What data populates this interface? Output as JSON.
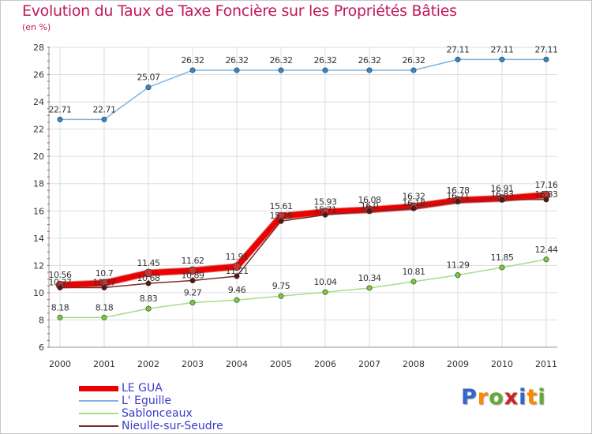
{
  "chart_data": {
    "type": "line",
    "title": "Evolution du Taux de Taxe Foncière sur les Propriétés Bâties",
    "ylabel": "(en %)",
    "xlabel": "",
    "categories": [
      "2000",
      "2001",
      "2002",
      "2003",
      "2004",
      "2005",
      "2006",
      "2007",
      "2008",
      "2009",
      "2010",
      "2011"
    ],
    "ylim": [
      6,
      28
    ],
    "yticks": [
      6,
      8,
      10,
      12,
      14,
      16,
      18,
      20,
      22,
      24,
      26,
      28
    ],
    "grid": true,
    "legend_position": "bottom-left",
    "series": [
      {
        "name": "LE GUA",
        "color": "#ee0000",
        "marker_color": "#cc3333",
        "values": [
          10.56,
          10.7,
          11.45,
          11.62,
          11.91,
          15.61,
          15.93,
          16.08,
          16.32,
          16.78,
          16.91,
          17.16
        ],
        "labels": [
          "10.56",
          "10.7",
          "11.45",
          "11.62",
          "11.91",
          "15.61",
          "15.93",
          "16.08",
          "16.32",
          "16.78",
          "16.91",
          "17.16"
        ],
        "style": "thick"
      },
      {
        "name": "L' Eguille",
        "color": "#80b3e0",
        "marker_color": "#3388cc",
        "values": [
          22.71,
          22.71,
          25.07,
          26.32,
          26.32,
          26.32,
          26.32,
          26.32,
          26.32,
          27.11,
          27.11,
          27.11
        ],
        "labels": [
          "22.71",
          "22.71",
          "25.07",
          "26.32",
          "26.32",
          "26.32",
          "26.32",
          "26.32",
          "26.32",
          "27.11",
          "27.11",
          "27.11"
        ],
        "style": "thin"
      },
      {
        "name": "Sablonceaux",
        "color": "#a8dc88",
        "marker_color": "#7acc33",
        "values": [
          8.18,
          8.18,
          8.83,
          9.27,
          9.46,
          9.75,
          10.04,
          10.34,
          10.81,
          11.29,
          11.85,
          12.44
        ],
        "labels": [
          "8.18",
          "8.18",
          "8.83",
          "9.27",
          "9.46",
          "9.75",
          "10.04",
          "10.34",
          "10.81",
          "11.29",
          "11.85",
          "12.44"
        ],
        "style": "thin"
      },
      {
        "name": "Nieulle-sur-Seudre",
        "color": "#7a2a2a",
        "marker_color": "#5a1414",
        "values": [
          10.37,
          10.37,
          10.68,
          10.89,
          11.21,
          15.25,
          15.71,
          16.0,
          16.18,
          16.71,
          16.83,
          16.83
        ],
        "labels": [
          "10.37",
          "10.37",
          "10.68",
          "10.89",
          "11.21",
          "15.25",
          "15.71",
          "16.0",
          "16.18",
          "16.71",
          "16.83",
          "16.83"
        ],
        "style": "thin"
      }
    ]
  },
  "header": {
    "title": "Evolution du Taux de Taxe Foncière sur les Propriétés Bâties",
    "subtitle": "(en %)"
  },
  "legend": {
    "items": [
      {
        "label": "LE GUA",
        "color": "#ee0000"
      },
      {
        "label": "L' Eguille",
        "color": "#80b3e0"
      },
      {
        "label": "Sablonceaux",
        "color": "#a8dc88"
      },
      {
        "label": "Nieulle-sur-Seudre",
        "color": "#7a2a2a"
      }
    ]
  },
  "logo": {
    "text": "Proxiti",
    "letter_colors": [
      "#3366cc",
      "#ff8800",
      "#66aa33",
      "#cc2222",
      "#3366cc",
      "#ff8800",
      "#66aa33"
    ]
  }
}
